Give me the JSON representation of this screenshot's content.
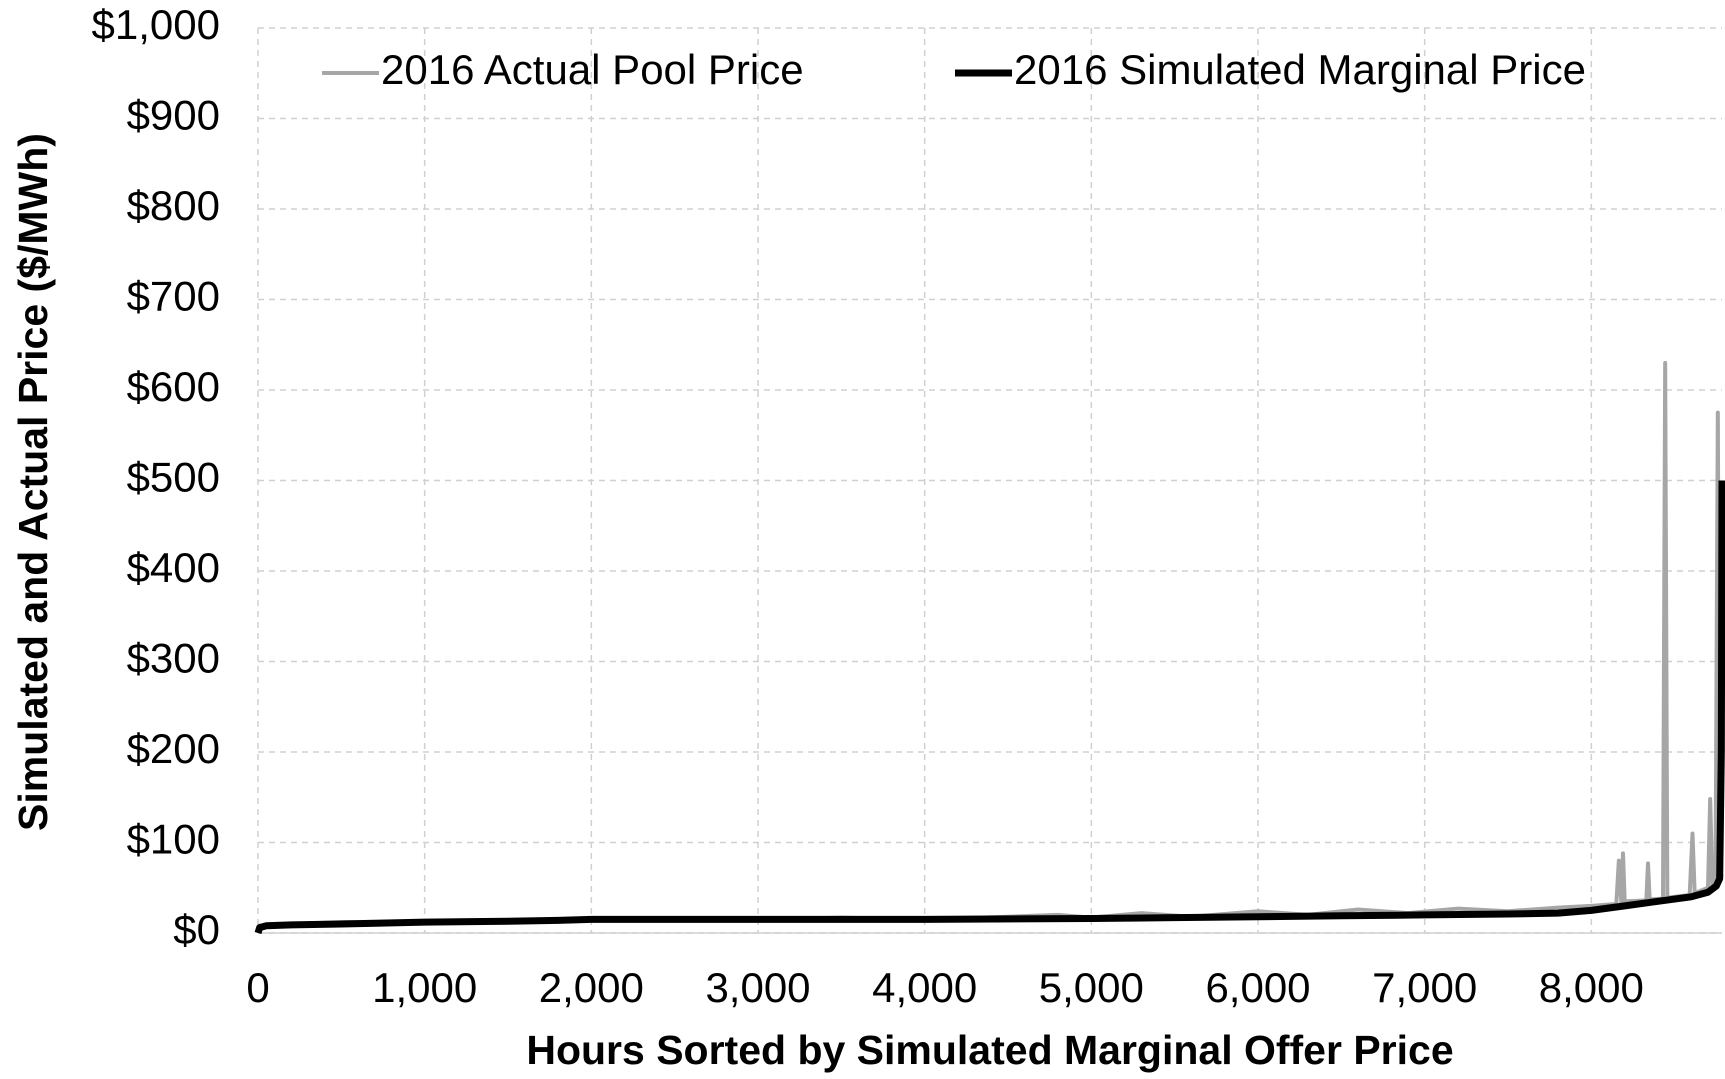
{
  "chart_data": {
    "type": "line",
    "x_label": "Hours Sorted by Simulated Marginal Offer Price",
    "y_label": "Simulated and Actual Price ($/MWh)",
    "xlim": [
      0,
      8784
    ],
    "ylim": [
      0,
      1000
    ],
    "xticks": [
      0,
      {
        "value": 1000,
        "label": "1,000"
      },
      {
        "value": 2000,
        "label": "2,000"
      },
      {
        "value": 3000,
        "label": "3,000"
      },
      {
        "value": 4000,
        "label": "4,000"
      },
      {
        "value": 5000,
        "label": "5,000"
      },
      {
        "value": 6000,
        "label": "6,000"
      },
      {
        "value": 7000,
        "label": "7,000"
      },
      {
        "value": 8000,
        "label": "8,000"
      }
    ],
    "yticks": [
      {
        "value": 0,
        "label": "$0"
      },
      {
        "value": 100,
        "label": "$100"
      },
      {
        "value": 200,
        "label": "$200"
      },
      {
        "value": 300,
        "label": "$300"
      },
      {
        "value": 400,
        "label": "$400"
      },
      {
        "value": 500,
        "label": "$500"
      },
      {
        "value": 600,
        "label": "$600"
      },
      {
        "value": 700,
        "label": "$700"
      },
      {
        "value": 800,
        "label": "$800"
      },
      {
        "value": 900,
        "label": "$900"
      },
      {
        "value": 1000,
        "label": "$1,000"
      }
    ],
    "grid": true,
    "legend": "top",
    "series": [
      {
        "name": "2016 Actual Pool Price",
        "color": "#a6a6a6",
        "width": 4,
        "x": [
          0,
          200,
          500,
          1000,
          1500,
          2000,
          2500,
          3000,
          3500,
          4000,
          4500,
          4800,
          5000,
          5300,
          5600,
          6000,
          6300,
          6600,
          6900,
          7200,
          7500,
          7800,
          8000,
          8150,
          8165,
          8180,
          8190,
          8200,
          8330,
          8340,
          8350,
          8430,
          8443,
          8456,
          8590,
          8607,
          8620,
          8700,
          8713,
          8726,
          8745,
          8759,
          8770,
          8784
        ],
        "values": [
          8,
          10,
          12,
          13,
          14,
          15,
          15,
          15,
          17,
          15,
          18,
          20,
          17,
          22,
          18,
          24,
          20,
          26,
          22,
          27,
          24,
          28,
          30,
          32,
          80,
          34,
          88,
          35,
          36,
          77,
          37,
          38,
          630,
          39,
          42,
          110,
          44,
          50,
          148,
          52,
          55,
          575,
          60,
          65
        ]
      },
      {
        "name": "2016 Simulated Marginal Price",
        "color": "#000000",
        "width": 7,
        "x": [
          0,
          10,
          50,
          200,
          500,
          1000,
          1500,
          1800,
          2000,
          3000,
          4000,
          5000,
          5500,
          6000,
          6500,
          7000,
          7500,
          7800,
          8000,
          8200,
          8400,
          8600,
          8700,
          8750,
          8770,
          8780,
          8784
        ],
        "values": [
          0,
          6,
          8,
          9,
          10,
          12,
          13,
          14,
          15,
          15,
          15,
          16,
          17,
          18,
          19,
          20,
          21,
          22,
          25,
          30,
          35,
          40,
          45,
          52,
          60,
          200,
          500
        ]
      }
    ]
  }
}
